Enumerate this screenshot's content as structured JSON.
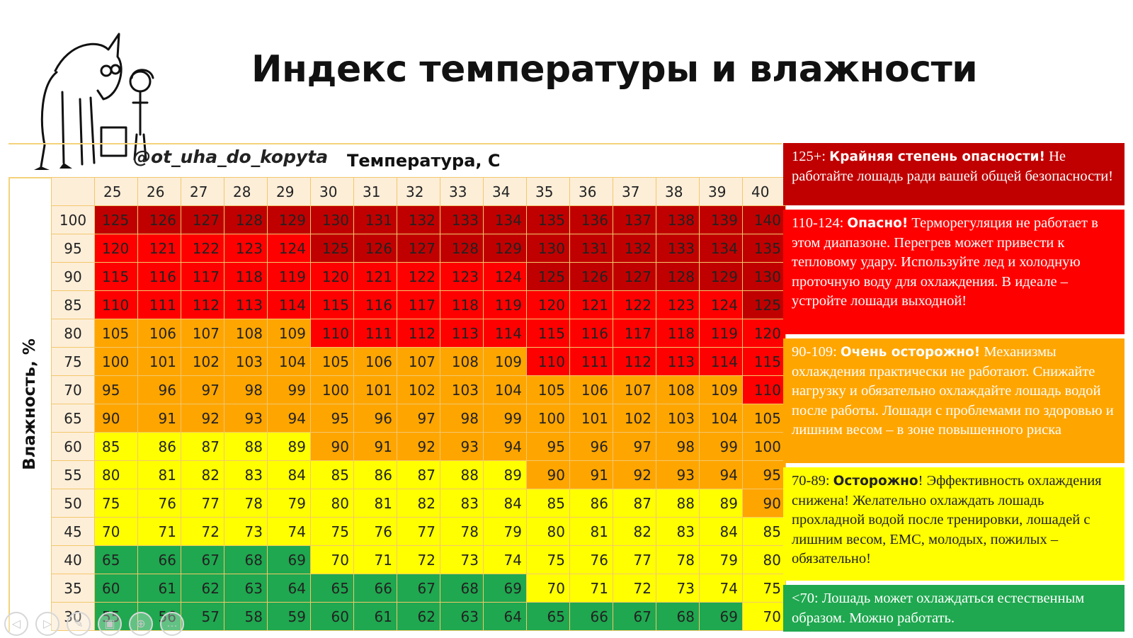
{
  "title": "Индекс температуры и влажности",
  "handle": "@ot_uha_do_kopyta",
  "temperature_label": "Температура, С",
  "humidity_label": "Влажность, %",
  "temperatures": [
    "25",
    "26",
    "27",
    "28",
    "29",
    "30",
    "31",
    "32",
    "33",
    "34",
    "35",
    "36",
    "37",
    "38",
    "39",
    "40"
  ],
  "humidities": [
    "100",
    "95",
    "90",
    "85",
    "80",
    "75",
    "70",
    "65",
    "60",
    "55",
    "50",
    "45",
    "40",
    "35",
    "30"
  ],
  "colors": {
    "extreme": "#c00000",
    "danger": "#ff0000",
    "caution": "#ffa500",
    "care": "#ffff00",
    "safe": "#1fa84f",
    "header_bg": "#fdeed8",
    "grid_line": "#f2c86b"
  },
  "legend": [
    {
      "range": "125+:",
      "heading": "Крайняя степень опасности!",
      "text": " Не работайте лошадь ради вашей общей безопасности!"
    },
    {
      "range": "110-124:",
      "heading": "Опасно!",
      "text": " Терморегуляция не работает в этом диапазоне.  Перегрев может привести к тепловому удару.  Используйте лед и холодную проточную воду для охлаждения. В идеале – устройте лошади выходной!"
    },
    {
      "range": "90-109:",
      "heading": "Очень осторожно!",
      "text": " Механизмы охлаждения практически не работают. Снижайте нагрузку и обязательно охлаждайте лошадь водой после работы. Лошади с проблемами по здоровью и лишним весом – в зоне повышенного риска"
    },
    {
      "range": "70-89:",
      "heading": "Осторожно",
      "text": "!  Эффективность охлаждения снижена!  Желательно охлаждать лошадь прохладной водой после тренировки, лошадей с лишним весом, ЕМС, молодых, пожилых – обязательно!"
    },
    {
      "range": "<70:",
      "heading": "",
      "text": " Лошадь может охлаждаться естественным образом.  Можно работать."
    }
  ],
  "nav_icons": [
    "prev-icon",
    "next-icon",
    "pen-icon",
    "slides-icon",
    "zoom-icon",
    "more-icon"
  ],
  "nav_glyphs": [
    "◁",
    "▷",
    "✎",
    "▣",
    "⊕",
    "…"
  ]
}
